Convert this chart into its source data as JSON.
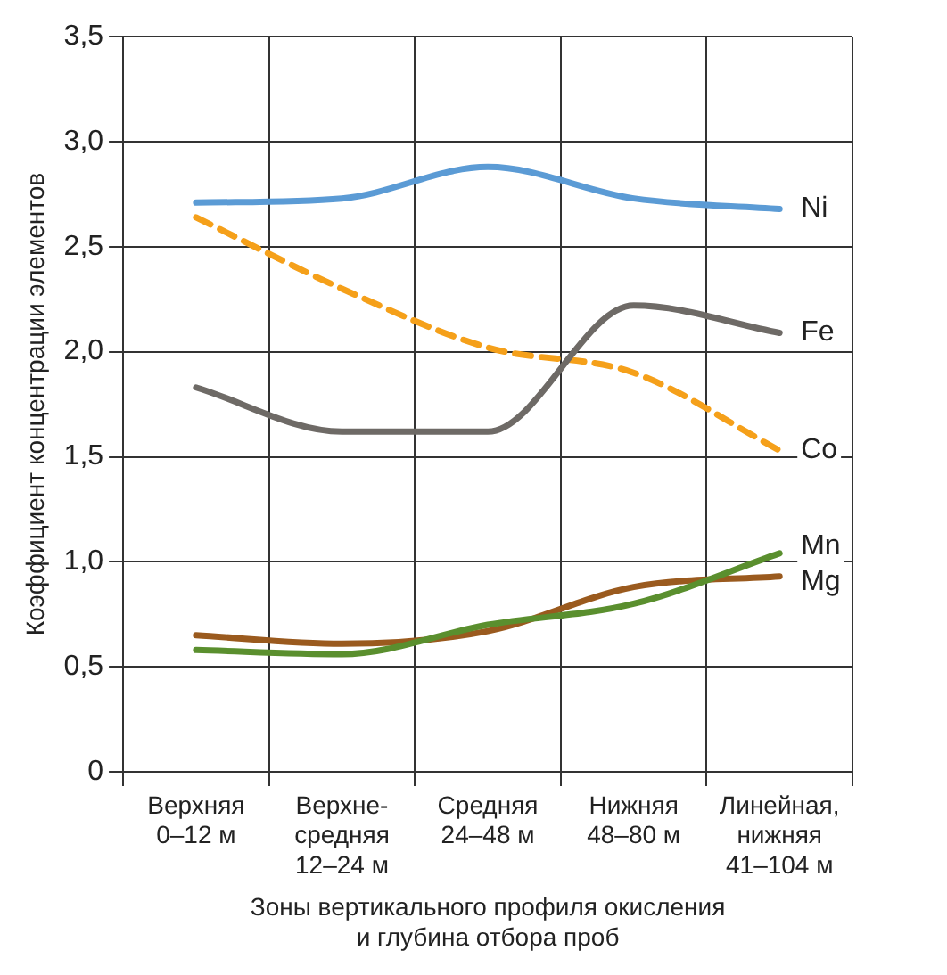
{
  "chart_data": {
    "type": "line",
    "xlabel": "Зоны вертикального профиля окисления\nи глубина отбора проб",
    "ylabel": "Коэффициент концентрации элементов",
    "categories": [
      "Верхняя\n0–12 м",
      "Верхне-\nсредняя\n12–24 м",
      "Средняя\n24–48 м",
      "Нижняя\n48–80 м",
      "Линейная,\nнижняя\n41–104 м"
    ],
    "series": [
      {
        "name": "Ni",
        "color": "#5b9bd5",
        "values": [
          2.71,
          2.73,
          2.88,
          2.73,
          2.68
        ]
      },
      {
        "name": "Fe",
        "color": "#6e6a66",
        "values": [
          1.83,
          1.62,
          1.62,
          2.22,
          2.09
        ]
      },
      {
        "name": "Co",
        "color": "#f5a01a",
        "line_style": "dashed",
        "values": [
          2.64,
          2.3,
          2.02,
          1.9,
          1.53
        ]
      },
      {
        "name": "Mn",
        "color": "#5a8f2e",
        "values": [
          0.58,
          0.56,
          0.7,
          0.8,
          1.04
        ]
      },
      {
        "name": "Mg",
        "color": "#9a5a1e",
        "values": [
          0.65,
          0.61,
          0.67,
          0.88,
          0.93
        ]
      }
    ],
    "ylim": [
      0,
      3.5
    ],
    "yticks": [
      0,
      {
        "value": 0.5,
        "label": "0,5"
      },
      {
        "value": 1,
        "label": "1,0"
      },
      {
        "value": 1.5,
        "label": "1,5"
      },
      {
        "value": 2,
        "label": "2,0"
      },
      {
        "value": 2.5,
        "label": "2,5"
      },
      {
        "value": 3,
        "label": "3,0"
      },
      {
        "value": 3.5,
        "label": "3,5"
      }
    ],
    "grid": true,
    "legend": false,
    "marker": "none",
    "line_style": "solid"
  }
}
